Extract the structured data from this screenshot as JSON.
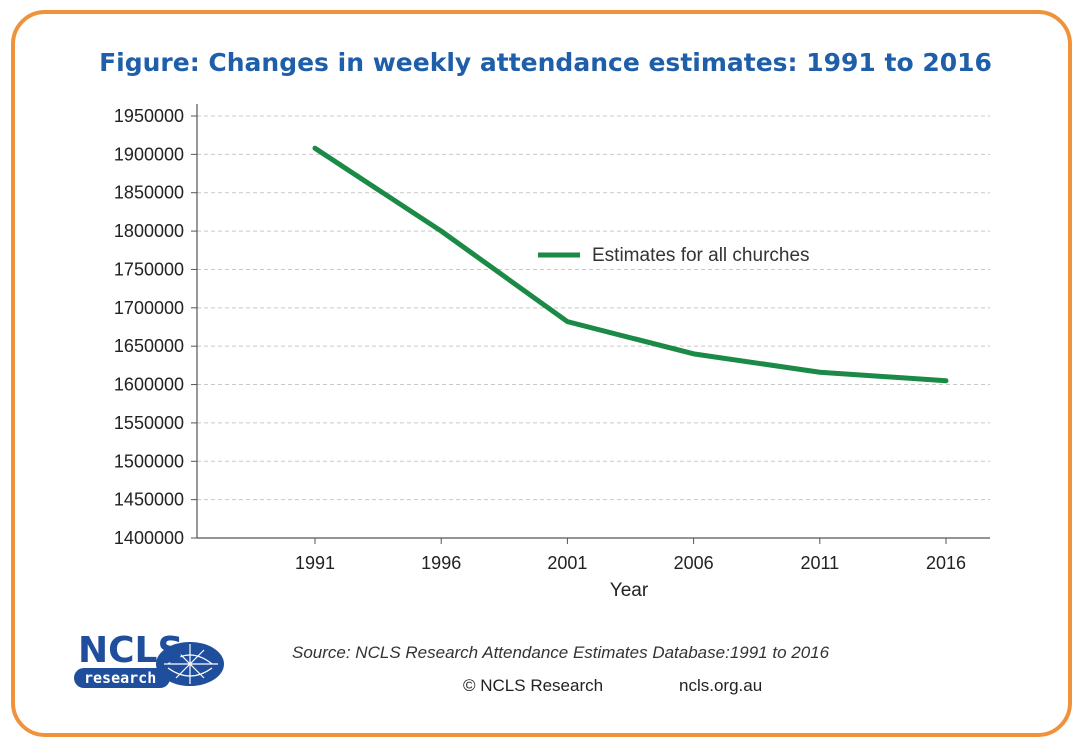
{
  "title": "Figure: Changes in weekly attendance estimates: 1991 to 2016",
  "footer": {
    "source": "Source: NCLS Research Attendance Estimates Database:1991 to 2016",
    "copyright": "© NCLS Research",
    "website": "ncls.org.au"
  },
  "logo": {
    "text_main": "NCLS",
    "text_sub": "research",
    "color": "#1f4e9c"
  },
  "colors": {
    "frame": "#f0923a",
    "title": "#1f5ea8",
    "series": "#1a8a46",
    "grid": "#c8c8c8"
  },
  "chart_data": {
    "type": "line",
    "title": "Figure: Changes in weekly attendance estimates: 1991 to 2016",
    "xlabel": "Year",
    "ylabel": "",
    "categories": [
      "1991",
      "1996",
      "2001",
      "2006",
      "2011",
      "2016"
    ],
    "series": [
      {
        "name": "Estimates for all churches",
        "values": [
          1908000,
          1800000,
          1682000,
          1640000,
          1616000,
          1605000
        ]
      }
    ],
    "ylim": [
      1400000,
      1950000
    ],
    "yticks": [
      1400000,
      1450000,
      1500000,
      1550000,
      1600000,
      1650000,
      1700000,
      1750000,
      1800000,
      1850000,
      1900000,
      1950000
    ],
    "grid": true,
    "legend_position": "center-right"
  }
}
